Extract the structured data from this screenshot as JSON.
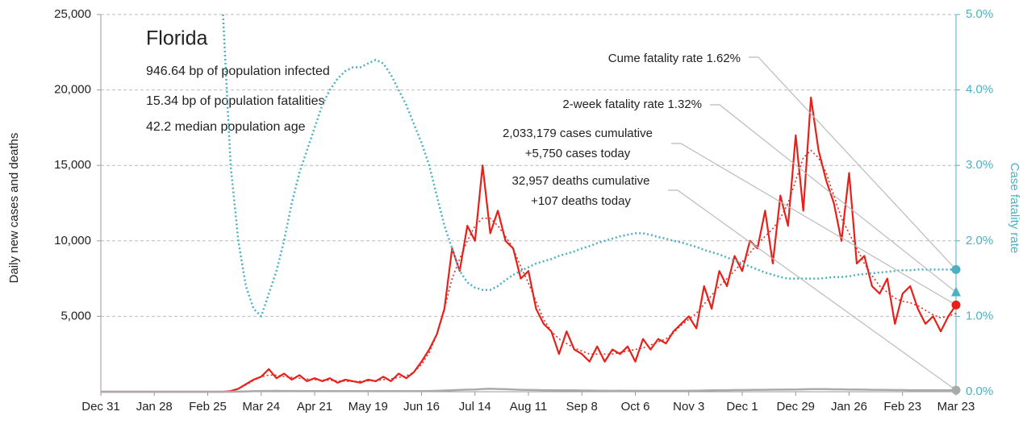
{
  "chart_data": {
    "type": "line",
    "title": "Florida",
    "subtitle_lines": [
      "946.64 bp of population infected",
      "15.34 bp of population fatalities",
      "42.2 median population age"
    ],
    "ylabel": "Daily new cases and deaths",
    "y2label": "Case fatality rate",
    "x": [
      0,
      4,
      8,
      12,
      16,
      20,
      24,
      28,
      32,
      36,
      40,
      44,
      48,
      52,
      56,
      60,
      64,
      68,
      72,
      76,
      80,
      84,
      88,
      92,
      96,
      100,
      104,
      108,
      112,
      116,
      120,
      124,
      128,
      132,
      136,
      140,
      144,
      148,
      152,
      156,
      160,
      164,
      168,
      172,
      176,
      180,
      184,
      188,
      192,
      196,
      200,
      204,
      208,
      212,
      216,
      220,
      224,
      228,
      232,
      236,
      240,
      244,
      248,
      252,
      256,
      260,
      264,
      268,
      272,
      276,
      280,
      284,
      288,
      292,
      296,
      300,
      304,
      308,
      312,
      316,
      320,
      324,
      328,
      332,
      336,
      340,
      344,
      348,
      352,
      356,
      360,
      364,
      368,
      372,
      376,
      380,
      384,
      388,
      392,
      396,
      400,
      404,
      408,
      412,
      416,
      420,
      424,
      428,
      432,
      436,
      440,
      444,
      448
    ],
    "xlim": [
      0,
      448
    ],
    "xticks": [
      {
        "value": 0,
        "label": "Dec 31"
      },
      {
        "value": 28,
        "label": "Jan 28"
      },
      {
        "value": 56,
        "label": "Feb 25"
      },
      {
        "value": 84,
        "label": "Mar 24"
      },
      {
        "value": 112,
        "label": "Apr 21"
      },
      {
        "value": 140,
        "label": "May 19"
      },
      {
        "value": 168,
        "label": "Jun 16"
      },
      {
        "value": 196,
        "label": "Jul 14"
      },
      {
        "value": 224,
        "label": "Aug 11"
      },
      {
        "value": 252,
        "label": "Sep 8"
      },
      {
        "value": 280,
        "label": "Oct 6"
      },
      {
        "value": 308,
        "label": "Nov 3"
      },
      {
        "value": 336,
        "label": "Dec 1"
      },
      {
        "value": 364,
        "label": "Dec 29"
      },
      {
        "value": 392,
        "label": "Jan 26"
      },
      {
        "value": 420,
        "label": "Feb 23"
      },
      {
        "value": 448,
        "label": "Mar 23"
      }
    ],
    "ylim": [
      0,
      25000
    ],
    "yticks": [
      {
        "value": 5000,
        "label": "5,000"
      },
      {
        "value": 10000,
        "label": "10,000"
      },
      {
        "value": 15000,
        "label": "15,000"
      },
      {
        "value": 20000,
        "label": "20,000"
      },
      {
        "value": 25000,
        "label": "25,000"
      }
    ],
    "y2lim": [
      0,
      5
    ],
    "y2ticks": [
      {
        "value": 0,
        "label": "0.0%"
      },
      {
        "value": 1,
        "label": "1.0%"
      },
      {
        "value": 2,
        "label": "2.0%"
      },
      {
        "value": 3,
        "label": "3.0%"
      },
      {
        "value": 4,
        "label": "4.0%"
      },
      {
        "value": 5,
        "label": "5.0%"
      }
    ],
    "grid": true,
    "series": [
      {
        "color": "#e8201a",
        "style": "solid",
        "width": 2.2,
        "values": [
          0,
          0,
          0,
          0,
          0,
          0,
          0,
          0,
          0,
          0,
          0,
          0,
          0,
          0,
          0,
          0,
          0,
          50,
          200,
          500,
          800,
          1000,
          1500,
          900,
          1200,
          800,
          1100,
          700,
          900,
          700,
          900,
          600,
          800,
          700,
          600,
          800,
          700,
          1000,
          700,
          1200,
          900,
          1300,
          2000,
          2800,
          3800,
          5500,
          9500,
          8000,
          11000,
          10000,
          15000,
          10500,
          12000,
          10000,
          9500,
          7500,
          8000,
          5500,
          4500,
          4000,
          2500,
          4000,
          2800,
          2500,
          2000,
          3000,
          2000,
          2800,
          2500,
          3000,
          2000,
          3500,
          2800,
          3500,
          3200,
          4000,
          4500,
          5000,
          4200,
          7000,
          5500,
          8000,
          7000,
          9000,
          8000,
          10000,
          9500,
          12000,
          8500,
          13000,
          11000,
          17000,
          12000,
          19500,
          16000,
          14000,
          12500,
          10000,
          14500,
          8500,
          9000,
          7000,
          6500,
          7500,
          4500,
          6500,
          7000,
          5500,
          4500,
          5000,
          4000,
          5000,
          5750
        ]
      },
      {
        "color": "#e8201a",
        "style": "dotted",
        "width": 1.5,
        "values": [
          0,
          0,
          0,
          0,
          0,
          0,
          0,
          0,
          0,
          0,
          0,
          0,
          0,
          0,
          0,
          0,
          0,
          50,
          200,
          450,
          750,
          1000,
          1100,
          1100,
          1000,
          950,
          900,
          850,
          800,
          780,
          760,
          720,
          700,
          680,
          700,
          720,
          750,
          800,
          850,
          950,
          1050,
          1300,
          1800,
          2600,
          3800,
          5500,
          7500,
          8800,
          10000,
          11000,
          11500,
          11500,
          11000,
          10300,
          9500,
          8300,
          7200,
          6000,
          4800,
          4000,
          3500,
          3200,
          2900,
          2700,
          2500,
          2500,
          2500,
          2500,
          2600,
          2700,
          2800,
          2900,
          3100,
          3300,
          3500,
          3900,
          4400,
          4800,
          5200,
          5800,
          6400,
          7000,
          7500,
          8000,
          8600,
          9200,
          9800,
          10300,
          10800,
          11500,
          12500,
          14000,
          15500,
          16000,
          15500,
          14500,
          13000,
          11500,
          10500,
          9500,
          8500,
          7700,
          7000,
          6600,
          6200,
          6000,
          5900,
          5700,
          5400,
          5100,
          4900,
          5000,
          5200
        ]
      },
      {
        "color": "#aaaaaa",
        "style": "solid",
        "width": 2.5,
        "values": [
          0,
          0,
          0,
          0,
          0,
          0,
          0,
          0,
          0,
          0,
          0,
          0,
          0,
          0,
          0,
          0,
          0,
          2,
          10,
          20,
          40,
          50,
          50,
          60,
          50,
          50,
          50,
          45,
          45,
          40,
          40,
          40,
          35,
          35,
          40,
          40,
          40,
          35,
          40,
          40,
          40,
          40,
          45,
          50,
          60,
          80,
          100,
          120,
          140,
          150,
          180,
          200,
          180,
          170,
          150,
          130,
          120,
          110,
          100,
          100,
          90,
          90,
          90,
          80,
          80,
          70,
          70,
          60,
          70,
          60,
          60,
          60,
          60,
          60,
          60,
          60,
          60,
          70,
          70,
          80,
          90,
          100,
          100,
          110,
          110,
          120,
          130,
          130,
          140,
          140,
          150,
          150,
          160,
          170,
          170,
          170,
          160,
          160,
          150,
          150,
          140,
          130,
          130,
          120,
          110,
          110,
          100,
          100,
          100,
          100,
          100,
          100,
          107
        ]
      },
      {
        "color": "#4bb0c4",
        "style": "dotted",
        "width": 2.5,
        "axis": "y2",
        "values": [
          null,
          null,
          null,
          null,
          null,
          null,
          null,
          null,
          null,
          null,
          null,
          null,
          null,
          null,
          null,
          null,
          5.0,
          3.0,
          2.0,
          1.4,
          1.1,
          1.0,
          1.3,
          1.6,
          2.0,
          2.5,
          2.9,
          3.2,
          3.5,
          3.8,
          4.0,
          4.15,
          4.25,
          4.3,
          4.3,
          4.35,
          4.4,
          4.35,
          4.2,
          4.0,
          3.8,
          3.55,
          3.3,
          3.0,
          2.6,
          2.2,
          1.9,
          1.6,
          1.45,
          1.38,
          1.35,
          1.35,
          1.4,
          1.48,
          1.55,
          1.6,
          1.65,
          1.7,
          1.73,
          1.76,
          1.8,
          1.83,
          1.86,
          1.9,
          1.93,
          1.97,
          2.0,
          2.03,
          2.06,
          2.08,
          2.1,
          2.1,
          2.08,
          2.05,
          2.03,
          2.0,
          1.98,
          1.95,
          1.92,
          1.88,
          1.85,
          1.82,
          1.78,
          1.74,
          1.7,
          1.66,
          1.62,
          1.58,
          1.55,
          1.52,
          1.5,
          1.5,
          1.5,
          1.5,
          1.5,
          1.51,
          1.52,
          1.52,
          1.53,
          1.55,
          1.56,
          1.57,
          1.58,
          1.59,
          1.6,
          1.61,
          1.61,
          1.62,
          1.62,
          1.62,
          1.62,
          1.62,
          1.62
        ]
      }
    ],
    "markers": [
      {
        "value": 1.62,
        "axis": "y2",
        "shape": "circle",
        "color": "#4bb0c4"
      },
      {
        "value": 1.32,
        "axis": "y2",
        "shape": "triangle",
        "color": "#4bb0c4"
      },
      {
        "value": 5750,
        "shape": "circle",
        "color": "#e8201a"
      },
      {
        "value": 107,
        "shape": "circle",
        "color": "#aaaaaa"
      }
    ],
    "annotations": [
      {
        "lines": [
          "Cume fatality rate 1.62%"
        ],
        "marker": 0
      },
      {
        "lines": [
          "2-week fatality rate 1.32%"
        ],
        "marker": 1
      },
      {
        "lines": [
          "2,033,179 cases cumulative",
          "+5,750 cases today"
        ],
        "marker": 2
      },
      {
        "lines": [
          "32,957 deaths cumulative",
          "+107 deaths today"
        ],
        "marker": 3
      }
    ]
  }
}
